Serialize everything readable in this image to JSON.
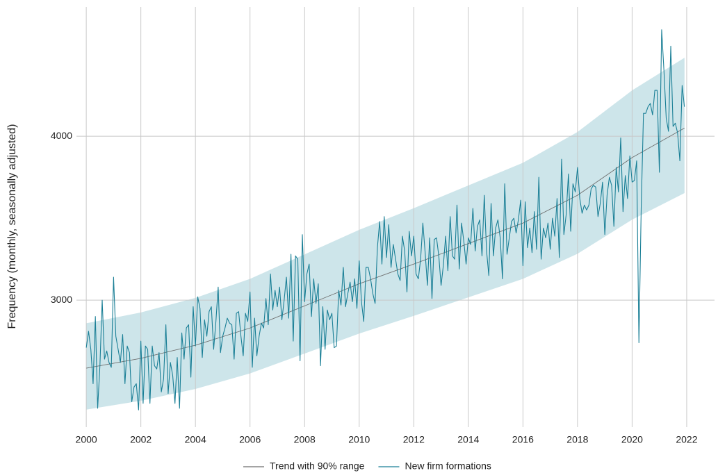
{
  "chart_data": {
    "type": "line",
    "ylabel": "Frequency (monthly, seasonally adjusted)",
    "xlim": [
      1999.08,
      2023.02
    ],
    "ylim": [
      2225,
      4789
    ],
    "xticks": [
      2000,
      2002,
      2004,
      2006,
      2008,
      2010,
      2012,
      2014,
      2016,
      2018,
      2020,
      2022
    ],
    "yticks": [
      3000,
      4000
    ],
    "grid": true,
    "legend": "bottom",
    "series": [
      {
        "name": "Trend with 90% range",
        "color": "#6e6e6e",
        "band_color": "#cde5ea",
        "x": [
          2000,
          2002,
          2004,
          2006,
          2008,
          2010,
          2012,
          2014,
          2016,
          2018,
          2020,
          2021.92
        ],
        "values": [
          2585,
          2645,
          2725,
          2830,
          2965,
          3100,
          3220,
          3345,
          3470,
          3640,
          3870,
          4050
        ],
        "lower": [
          2332,
          2386,
          2458,
          2553,
          2674,
          2796,
          2904,
          3017,
          3130,
          3283,
          3491,
          3653
        ],
        "upper": [
          2859,
          2925,
          3014,
          3130,
          3279,
          3429,
          3561,
          3700,
          3838,
          4026,
          4280,
          4479
        ]
      },
      {
        "name": "New firm formations",
        "color": "#1a7f96",
        "x": [
          2000,
          2000.083,
          2000.167,
          2000.25,
          2000.333,
          2000.417,
          2000.5,
          2000.583,
          2000.667,
          2000.75,
          2000.833,
          2000.917,
          2001,
          2001.083,
          2001.167,
          2001.25,
          2001.333,
          2001.417,
          2001.5,
          2001.583,
          2001.667,
          2001.75,
          2001.833,
          2001.917,
          2002,
          2002.083,
          2002.167,
          2002.25,
          2002.333,
          2002.417,
          2002.5,
          2002.583,
          2002.667,
          2002.75,
          2002.833,
          2002.917,
          2003,
          2003.083,
          2003.167,
          2003.25,
          2003.333,
          2003.417,
          2003.5,
          2003.583,
          2003.667,
          2003.75,
          2003.833,
          2003.917,
          2004,
          2004.083,
          2004.167,
          2004.25,
          2004.333,
          2004.417,
          2004.5,
          2004.583,
          2004.667,
          2004.75,
          2004.833,
          2004.917,
          2005,
          2005.083,
          2005.167,
          2005.25,
          2005.333,
          2005.417,
          2005.5,
          2005.583,
          2005.667,
          2005.75,
          2005.833,
          2005.917,
          2006,
          2006.083,
          2006.167,
          2006.25,
          2006.333,
          2006.417,
          2006.5,
          2006.583,
          2006.667,
          2006.75,
          2006.833,
          2006.917,
          2007,
          2007.083,
          2007.167,
          2007.25,
          2007.333,
          2007.417,
          2007.5,
          2007.583,
          2007.667,
          2007.75,
          2007.833,
          2007.917,
          2008,
          2008.083,
          2008.167,
          2008.25,
          2008.333,
          2008.417,
          2008.5,
          2008.583,
          2008.667,
          2008.75,
          2008.833,
          2008.917,
          2009,
          2009.083,
          2009.167,
          2009.25,
          2009.333,
          2009.417,
          2009.5,
          2009.583,
          2009.667,
          2009.75,
          2009.833,
          2009.917,
          2010,
          2010.083,
          2010.167,
          2010.25,
          2010.333,
          2010.417,
          2010.5,
          2010.583,
          2010.667,
          2010.75,
          2010.833,
          2010.917,
          2011,
          2011.083,
          2011.167,
          2011.25,
          2011.333,
          2011.417,
          2011.5,
          2011.583,
          2011.667,
          2011.75,
          2011.833,
          2011.917,
          2012,
          2012.083,
          2012.167,
          2012.25,
          2012.333,
          2012.417,
          2012.5,
          2012.583,
          2012.667,
          2012.75,
          2012.833,
          2012.917,
          2013,
          2013.083,
          2013.167,
          2013.25,
          2013.333,
          2013.417,
          2013.5,
          2013.583,
          2013.667,
          2013.75,
          2013.833,
          2013.917,
          2014,
          2014.083,
          2014.167,
          2014.25,
          2014.333,
          2014.417,
          2014.5,
          2014.583,
          2014.667,
          2014.75,
          2014.833,
          2014.917,
          2015,
          2015.083,
          2015.167,
          2015.25,
          2015.333,
          2015.417,
          2015.5,
          2015.583,
          2015.667,
          2015.75,
          2015.833,
          2015.917,
          2016,
          2016.083,
          2016.167,
          2016.25,
          2016.333,
          2016.417,
          2016.5,
          2016.583,
          2016.667,
          2016.75,
          2016.833,
          2016.917,
          2017,
          2017.083,
          2017.167,
          2017.25,
          2017.333,
          2017.417,
          2017.5,
          2017.583,
          2017.667,
          2017.75,
          2017.833,
          2017.917,
          2018,
          2018.083,
          2018.167,
          2018.25,
          2018.333,
          2018.417,
          2018.5,
          2018.583,
          2018.667,
          2018.75,
          2018.833,
          2018.917,
          2019,
          2019.083,
          2019.167,
          2019.25,
          2019.333,
          2019.417,
          2019.5,
          2019.583,
          2019.667,
          2019.75,
          2019.833,
          2019.917,
          2020,
          2020.083,
          2020.167,
          2020.25,
          2020.333,
          2020.417,
          2020.5,
          2020.583,
          2020.667,
          2020.75,
          2020.833,
          2020.917,
          2021,
          2021.083,
          2021.167,
          2021.25,
          2021.333,
          2021.417,
          2021.5,
          2021.583,
          2021.667,
          2021.75,
          2021.833,
          2021.917
        ],
        "values": [
          2710,
          2810,
          2700,
          2490,
          2900,
          2340,
          2600,
          3000,
          2640,
          2690,
          2620,
          2590,
          3140,
          2780,
          2700,
          2620,
          2790,
          2490,
          2720,
          2680,
          2380,
          2470,
          2490,
          2330,
          2750,
          2370,
          2720,
          2700,
          2370,
          2720,
          2600,
          2580,
          2680,
          2440,
          2520,
          2850,
          2430,
          2620,
          2540,
          2370,
          2650,
          2340,
          2800,
          2640,
          2830,
          2850,
          2530,
          2960,
          2720,
          3020,
          2950,
          2650,
          2880,
          2780,
          2930,
          2960,
          2700,
          2870,
          3080,
          2680,
          2780,
          2830,
          2890,
          2860,
          2850,
          2640,
          2920,
          2930,
          2780,
          2660,
          2920,
          2870,
          3050,
          2590,
          2890,
          2660,
          2780,
          2860,
          2830,
          3010,
          2850,
          3160,
          2940,
          3060,
          2960,
          3080,
          2880,
          3000,
          3140,
          2890,
          3280,
          2750,
          3270,
          3250,
          2630,
          3400,
          2990,
          3160,
          3220,
          2900,
          3130,
          2980,
          3100,
          2600,
          2960,
          2700,
          2940,
          2880,
          2920,
          2710,
          2720,
          3060,
          2970,
          3200,
          2960,
          3040,
          3110,
          2990,
          3130,
          2950,
          3240,
          2990,
          2870,
          3200,
          3200,
          3130,
          3040,
          2980,
          3320,
          3480,
          3220,
          3510,
          3260,
          3460,
          3200,
          3340,
          3250,
          3160,
          3120,
          3390,
          3300,
          3050,
          3420,
          3270,
          3390,
          3160,
          3130,
          3250,
          3470,
          3290,
          3090,
          3380,
          3010,
          3370,
          3380,
          3270,
          3090,
          3210,
          3390,
          3180,
          3510,
          3270,
          3250,
          3580,
          3190,
          3470,
          3360,
          3220,
          3380,
          3340,
          3560,
          3300,
          3450,
          3490,
          3270,
          3640,
          3300,
          3150,
          3590,
          3270,
          3440,
          3490,
          3380,
          3130,
          3710,
          3280,
          3380,
          3480,
          3500,
          3410,
          3490,
          3610,
          3210,
          3600,
          3320,
          3440,
          3290,
          3540,
          3310,
          3750,
          3250,
          3440,
          3380,
          3470,
          3310,
          3500,
          3390,
          3620,
          3260,
          3860,
          3400,
          3520,
          3770,
          3420,
          3710,
          3660,
          3810,
          3620,
          3530,
          3580,
          3550,
          3580,
          3680,
          3700,
          3690,
          3510,
          3590,
          3720,
          3400,
          3640,
          3750,
          3700,
          3450,
          3810,
          3660,
          3990,
          3540,
          3760,
          3620,
          3880,
          3720,
          3730,
          3850,
          2740,
          3560,
          4140,
          4140,
          4180,
          4200,
          4130,
          4280,
          4280,
          3780,
          4650,
          4400,
          4110,
          4030,
          4550,
          4060,
          4080,
          4020,
          3850,
          4310,
          4180
        ]
      }
    ]
  }
}
